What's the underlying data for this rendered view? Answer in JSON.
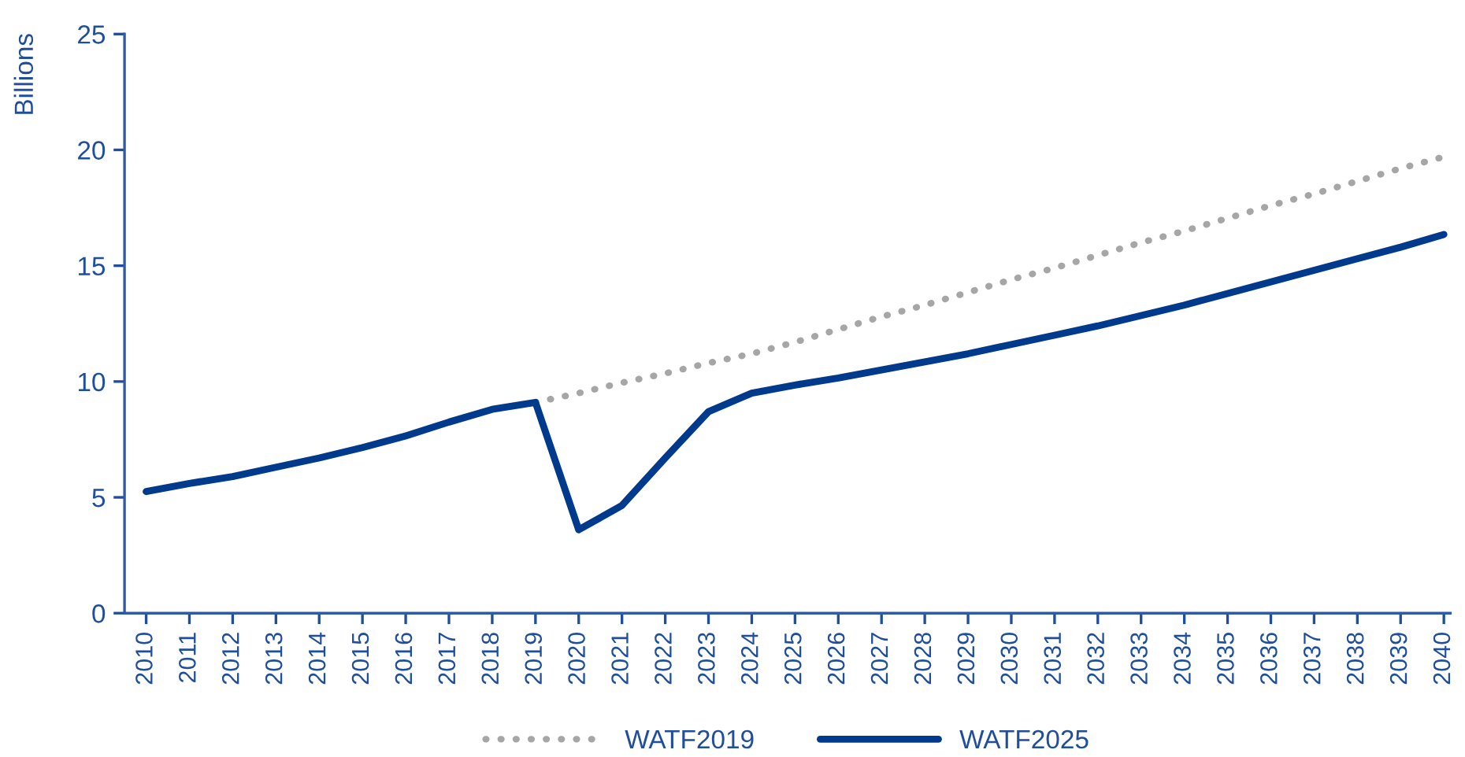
{
  "chart_data": {
    "type": "line",
    "ylabel": "Billions",
    "categories": [
      "2010",
      "2011",
      "2012",
      "2013",
      "2014",
      "2015",
      "2016",
      "2017",
      "2018",
      "2019",
      "2020",
      "2021",
      "2022",
      "2023",
      "2024",
      "2025",
      "2026",
      "2027",
      "2028",
      "2029",
      "2030",
      "2031",
      "2032",
      "2033",
      "2034",
      "2035",
      "2036",
      "2037",
      "2038",
      "2039",
      "2040"
    ],
    "series": [
      {
        "name": "WATF2019",
        "color": "#a6a6a6",
        "line_style": "dotted",
        "values": [
          null,
          null,
          null,
          null,
          null,
          null,
          null,
          null,
          null,
          9.1,
          9.5,
          9.95,
          10.35,
          10.8,
          11.2,
          11.7,
          12.25,
          12.8,
          13.3,
          13.85,
          14.4,
          14.9,
          15.45,
          16.0,
          16.5,
          17.05,
          17.6,
          18.1,
          18.65,
          19.2,
          19.7
        ]
      },
      {
        "name": "WATF2025",
        "color": "#003a8c",
        "line_style": "solid",
        "values": [
          5.25,
          5.6,
          5.9,
          6.3,
          6.7,
          7.15,
          7.65,
          8.25,
          8.8,
          9.1,
          3.6,
          4.65,
          6.7,
          8.7,
          9.5,
          9.85,
          10.15,
          10.5,
          10.85,
          11.2,
          11.6,
          12.0,
          12.4,
          12.85,
          13.3,
          13.8,
          14.3,
          14.8,
          15.3,
          15.8,
          16.35
        ]
      }
    ],
    "ylim": [
      0,
      25
    ],
    "yticks": [
      0,
      5,
      10,
      15,
      20,
      25
    ],
    "grid": false,
    "legend": "bottom",
    "marker": "none"
  }
}
